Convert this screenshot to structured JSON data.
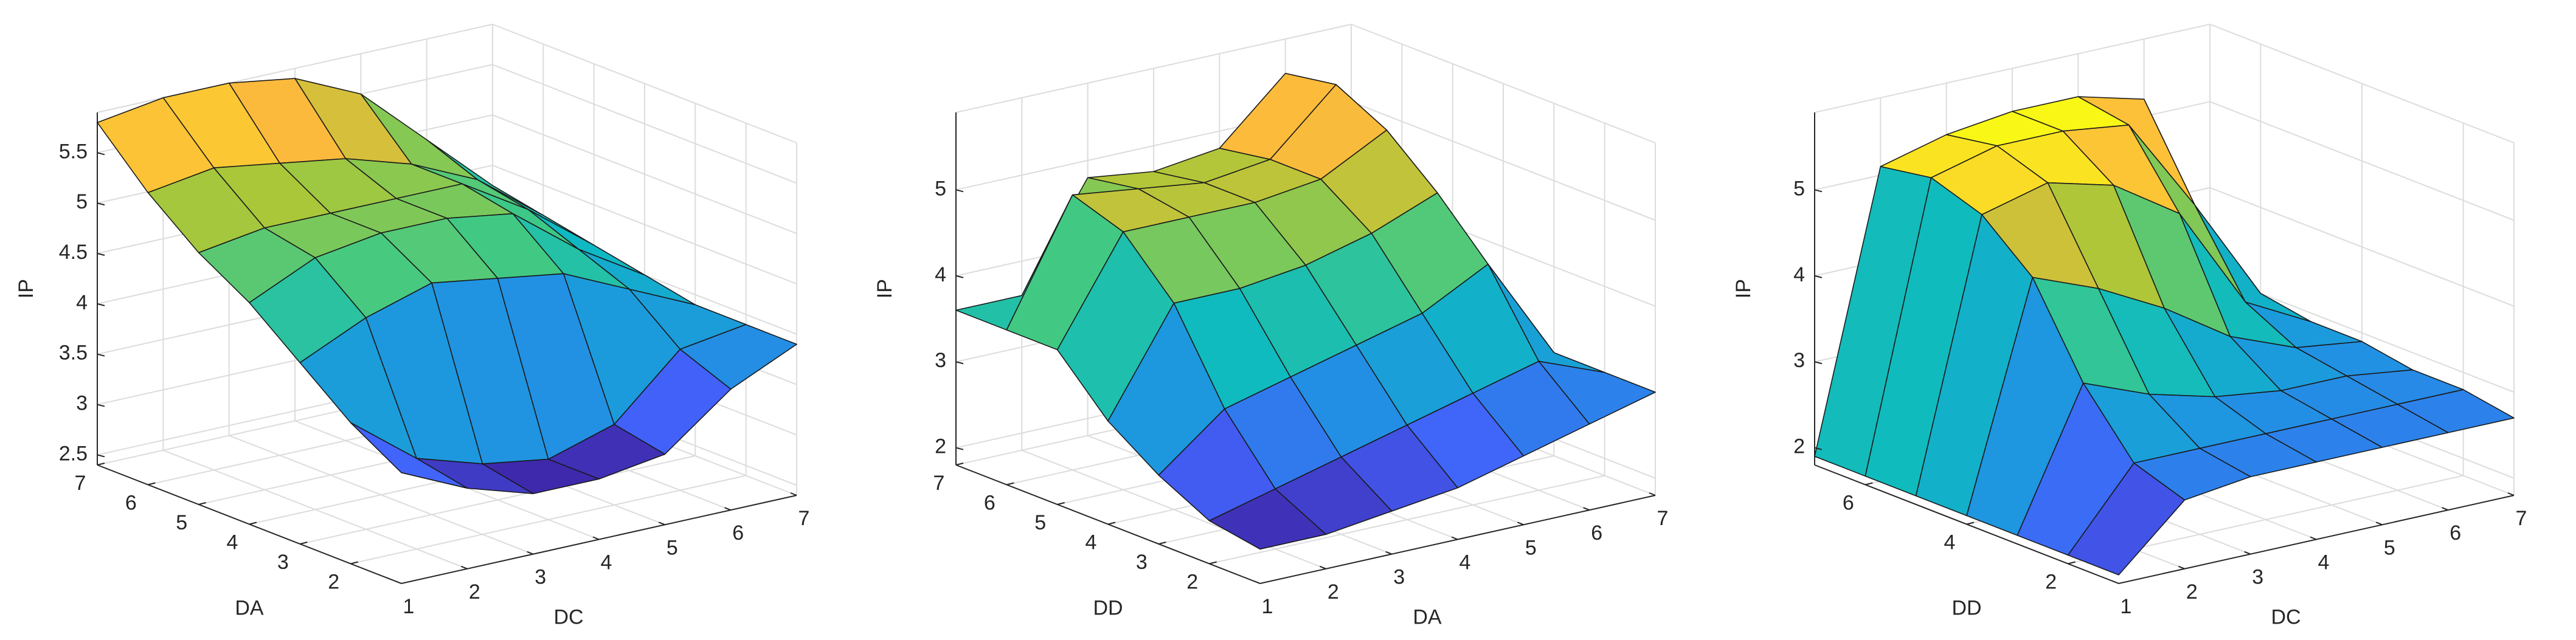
{
  "chart_data": [
    {
      "type": "surface",
      "colormap": "parula",
      "grid": true,
      "xlabel": "DC",
      "ylabel": "DA",
      "zlabel": "IP",
      "x": [
        1,
        2,
        3,
        4,
        5,
        6,
        7
      ],
      "y": [
        1,
        2,
        3,
        4,
        5,
        6,
        7
      ],
      "z": [
        [
          3.5,
          3.2,
          3.0,
          3.0,
          3.1,
          3.6,
          3.9
        ],
        [
          3.8,
          3.3,
          3.1,
          3.0,
          3.2,
          3.8,
          3.9
        ],
        [
          4.2,
          4.5,
          4.7,
          4.6,
          4.5,
          4.2,
          3.9
        ],
        [
          4.6,
          4.9,
          5.0,
          5.0,
          4.9,
          4.4,
          4.0
        ],
        [
          4.9,
          5.0,
          5.0,
          5.0,
          5.0,
          4.6,
          4.1
        ],
        [
          5.3,
          5.4,
          5.3,
          5.2,
          5.0,
          4.7,
          4.2
        ],
        [
          5.8,
          5.9,
          5.9,
          5.8,
          5.5,
          4.9,
          4.3
        ]
      ],
      "xlim": [
        1,
        7
      ],
      "ylim": [
        1,
        7
      ],
      "zlim": [
        2.4,
        5.9
      ],
      "xticks": [
        1,
        2,
        3,
        4,
        5,
        6,
        7
      ],
      "yticks": [
        2,
        3,
        4,
        5,
        6,
        7
      ],
      "zticks": [
        2.5,
        3,
        3.5,
        4,
        4.5,
        5,
        5.5
      ]
    },
    {
      "type": "surface",
      "colormap": "parula",
      "grid": true,
      "xlabel": "DA",
      "ylabel": "DD",
      "zlabel": "IP",
      "x": [
        1,
        2,
        3,
        4,
        5,
        6,
        7
      ],
      "y": [
        1,
        2,
        3,
        4,
        5,
        6,
        7
      ],
      "z": [
        [
          2.2,
          2.2,
          2.3,
          2.4,
          2.6,
          2.8,
          3.0
        ],
        [
          2.3,
          2.5,
          2.7,
          2.9,
          3.1,
          3.3,
          3.0
        ],
        [
          2.6,
          3.2,
          3.4,
          3.6,
          3.8,
          4.2,
          3.0
        ],
        [
          3.0,
          4.2,
          4.2,
          4.3,
          4.5,
          4.8,
          3.1
        ],
        [
          3.6,
          4.8,
          4.8,
          4.8,
          4.9,
          5.3,
          3.1
        ],
        [
          3.6,
          5.0,
          4.9,
          4.8,
          4.9,
          5.6,
          3.2
        ],
        [
          3.6,
          3.6,
          4.8,
          4.7,
          4.8,
          5.5,
          3.2
        ]
      ],
      "xlim": [
        1,
        7
      ],
      "ylim": [
        1,
        7
      ],
      "zlim": [
        1.8,
        5.9
      ],
      "xticks": [
        1,
        2,
        3,
        4,
        5,
        6,
        7
      ],
      "yticks": [
        2,
        3,
        4,
        5,
        6,
        7
      ],
      "zticks": [
        2,
        3,
        4,
        5
      ]
    },
    {
      "type": "surface",
      "colormap": "parula",
      "grid": true,
      "xlabel": "DC",
      "ylabel": "DD",
      "zlabel": "IP",
      "x": [
        1,
        2,
        3,
        4,
        5,
        6,
        7
      ],
      "y": [
        1,
        2,
        3,
        4,
        5,
        6,
        7
      ],
      "z": [
        [
          1.9,
          2.6,
          2.7,
          2.7,
          2.7,
          2.7,
          2.7
        ],
        [
          1.9,
          2.8,
          2.8,
          2.8,
          2.8,
          2.8,
          2.8
        ],
        [
          1.9,
          3.5,
          3.2,
          3.0,
          2.9,
          2.9,
          2.8
        ],
        [
          1.9,
          4.5,
          4.2,
          3.8,
          3.3,
          3.0,
          2.9
        ],
        [
          1.9,
          5.0,
          5.2,
          5.0,
          4.5,
          3.3,
          2.9
        ],
        [
          1.9,
          5.2,
          5.4,
          5.4,
          5.3,
          4.2,
          3.0
        ],
        [
          1.9,
          5.1,
          5.3,
          5.4,
          5.4,
          5.2,
          3.0
        ]
      ],
      "xlim": [
        1,
        7
      ],
      "ylim": [
        1,
        7
      ],
      "zlim": [
        1.8,
        5.9
      ],
      "xticks": [
        1,
        2,
        3,
        4,
        5,
        6,
        7
      ],
      "yticks": [
        2,
        4,
        6
      ],
      "zticks": [
        2,
        3,
        4,
        5
      ]
    }
  ]
}
